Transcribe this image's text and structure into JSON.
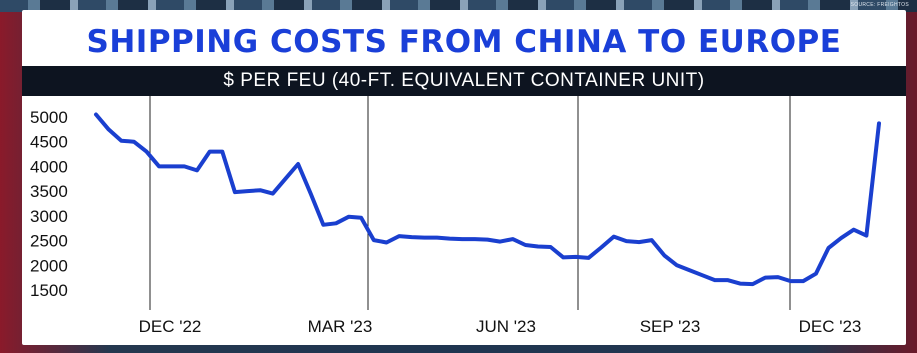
{
  "source_label": "SOURCE: FREIGHTOS",
  "chart_data": {
    "type": "line",
    "title": "SHIPPING COSTS FROM CHINA TO EUROPE",
    "subtitle": "$ PER FEU (40-FT. EQUIVALENT CONTAINER UNIT)",
    "xlabel": "",
    "ylabel": "",
    "ylim": [
      1000,
      5400
    ],
    "yticks": [
      5000,
      4500,
      4000,
      3500,
      3000,
      2500,
      2000,
      1500
    ],
    "x_ticks": [
      "DEC '22",
      "MAR '23",
      "JUN '23",
      "SEP '23",
      "DEC '23"
    ],
    "grid": "vertical lines at each x tick",
    "line_color": "#1a3fcf",
    "title_color": "#1a3fd8",
    "series": [
      {
        "values": [
          5050,
          4750,
          4520,
          4500,
          4300,
          4000,
          4000,
          4000,
          3920,
          4300,
          4300,
          3480,
          3500,
          3520,
          3450,
          3750,
          4050,
          3450,
          2820,
          2850,
          2980,
          2960,
          2510,
          2460,
          2590,
          2570,
          2560,
          2560,
          2540,
          2530,
          2530,
          2520,
          2480,
          2530,
          2410,
          2380,
          2370,
          2160,
          2170,
          2150,
          2360,
          2580,
          2490,
          2470,
          2510,
          2200,
          2000,
          1900,
          1800,
          1700,
          1700,
          1630,
          1620,
          1750,
          1760,
          1680,
          1680,
          1830,
          2350,
          2550,
          2720,
          2600,
          4870
        ]
      }
    ]
  }
}
